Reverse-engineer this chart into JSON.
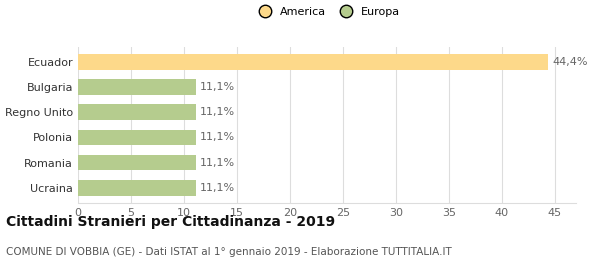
{
  "categories": [
    "Ucraina",
    "Romania",
    "Polonia",
    "Regno Unito",
    "Bulgaria",
    "Ecuador"
  ],
  "values": [
    11.1,
    11.1,
    11.1,
    11.1,
    11.1,
    44.4
  ],
  "labels": [
    "11,1%",
    "11,1%",
    "11,1%",
    "11,1%",
    "11,1%",
    "44,4%"
  ],
  "colors": [
    "#b5cc8e",
    "#b5cc8e",
    "#b5cc8e",
    "#b5cc8e",
    "#b5cc8e",
    "#fdd98a"
  ],
  "legend_labels": [
    "America",
    "Europa"
  ],
  "legend_colors": [
    "#fdd98a",
    "#b5cc8e"
  ],
  "xlim": [
    0,
    47
  ],
  "xticks": [
    0,
    5,
    10,
    15,
    20,
    25,
    30,
    35,
    40,
    45
  ],
  "title": "Cittadini Stranieri per Cittadinanza - 2019",
  "subtitle": "COMUNE DI VOBBIA (GE) - Dati ISTAT al 1° gennaio 2019 - Elaborazione TUTTITALIA.IT",
  "title_fontsize": 10,
  "subtitle_fontsize": 7.5,
  "label_fontsize": 8,
  "tick_fontsize": 8,
  "background_color": "#ffffff",
  "grid_color": "#dddddd"
}
